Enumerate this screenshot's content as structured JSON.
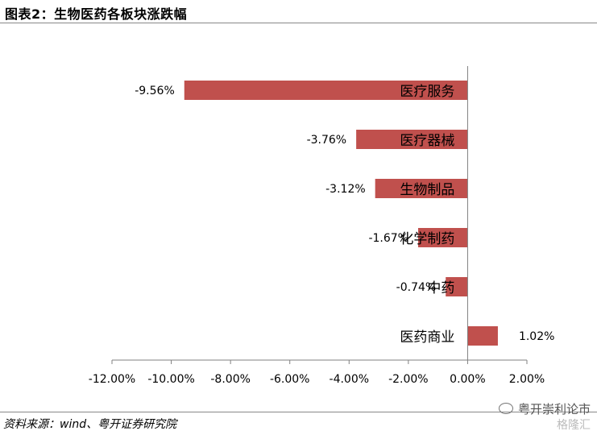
{
  "header": {
    "title": "图表2：生物医药各板块涨跌幅"
  },
  "footer": {
    "source": "资料来源：wind、粤开证券研究院",
    "watermark_line1": "粤开崇利论市",
    "watermark_line2": "格隆汇"
  },
  "colors": {
    "bar": "#C0504D",
    "axis": "#808080"
  },
  "chart_data": {
    "type": "bar",
    "orientation": "horizontal",
    "title": "",
    "xlabel": "",
    "ylabel": "",
    "categories": [
      "医疗服务",
      "医疗器械",
      "生物制品",
      "化学制药",
      "中药",
      "医药商业"
    ],
    "values": [
      -9.56,
      -3.76,
      -3.12,
      -1.67,
      -0.74,
      1.02
    ],
    "value_labels": [
      "-9.56%",
      "-3.76%",
      "-3.12%",
      "-1.67%",
      "-0.74%",
      "1.02%"
    ],
    "xlim": [
      -12,
      2
    ],
    "xticks": [
      -12,
      -10,
      -8,
      -6,
      -4,
      -2,
      0,
      2
    ],
    "xtick_labels": [
      "-12.00%",
      "-10.00%",
      "-8.00%",
      "-6.00%",
      "-4.00%",
      "-2.00%",
      "0.00%",
      "2.00%"
    ],
    "grid": false,
    "legend": "none"
  }
}
